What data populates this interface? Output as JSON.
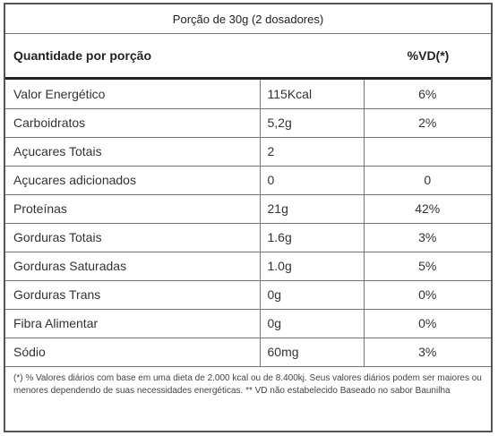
{
  "portion": "Porção de 30g (2 dosadores)",
  "header": {
    "left": "Quantidade por porção",
    "right": "%VD(*)"
  },
  "rows": [
    {
      "name": "Valor Energético",
      "amount": "115Kcal",
      "vd": "6%"
    },
    {
      "name": "Carboidratos",
      "amount": "5,2g",
      "vd": "2%"
    },
    {
      "name": "Açucares Totais",
      "amount": "2",
      "vd": ""
    },
    {
      "name": "Açucares adicionados",
      "amount": "0",
      "vd": "0"
    },
    {
      "name": "Proteínas",
      "amount": "21g",
      "vd": "42%"
    },
    {
      "name": "Gorduras Totais",
      "amount": "1.6g",
      "vd": "3%"
    },
    {
      "name": "Gorduras Saturadas",
      "amount": "1.0g",
      "vd": "5%"
    },
    {
      "name": "Gorduras Trans",
      "amount": "0g",
      "vd": "0%"
    },
    {
      "name": "Fibra Alimentar",
      "amount": "0g",
      "vd": "0%"
    },
    {
      "name": "Sódio",
      "amount": "60mg",
      "vd": "3%"
    }
  ],
  "footnote": "(*) % Valores diários com base em uma dieta de 2.000 kcal ou de 8.400kj. Seus valores diários podem ser maiores ou menores dependendo de suas necessidades energéticas. ** VD não estabelecido Baseado no sabor Baunilha"
}
